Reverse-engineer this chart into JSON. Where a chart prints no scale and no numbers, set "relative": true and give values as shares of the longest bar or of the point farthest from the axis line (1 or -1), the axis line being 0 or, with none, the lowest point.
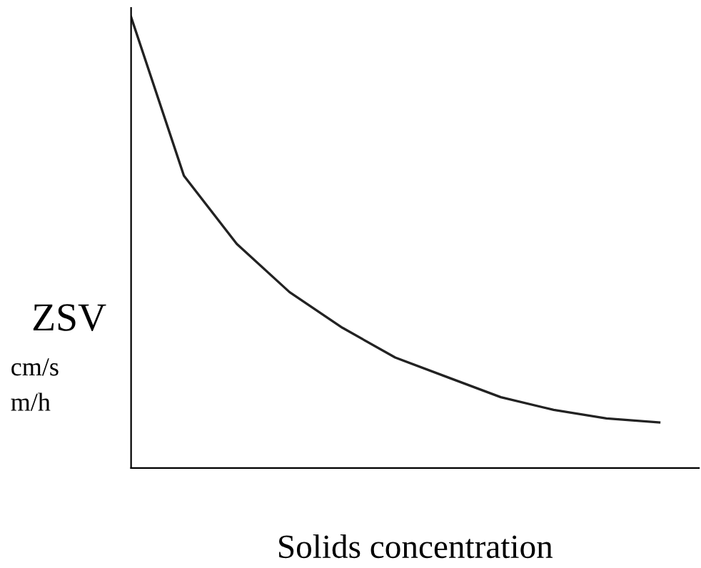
{
  "chart_data": {
    "type": "line",
    "relative": true,
    "xlabel": "Solids concentration",
    "ylabel": "ZSV",
    "annotations": [
      "cm/s",
      "m/h"
    ],
    "categories": [
      null,
      null,
      null,
      null,
      null,
      null,
      null,
      null,
      null,
      null,
      null
    ],
    "series": [
      {
        "color": "#222222",
        "values": [
          1.0,
          0.648,
          0.497,
          0.39,
          0.311,
          0.245,
          0.201,
          0.157,
          0.129,
          0.11,
          0.101
        ]
      }
    ],
    "grid": false,
    "legend": false,
    "marker": "none",
    "line_style": "solid"
  }
}
